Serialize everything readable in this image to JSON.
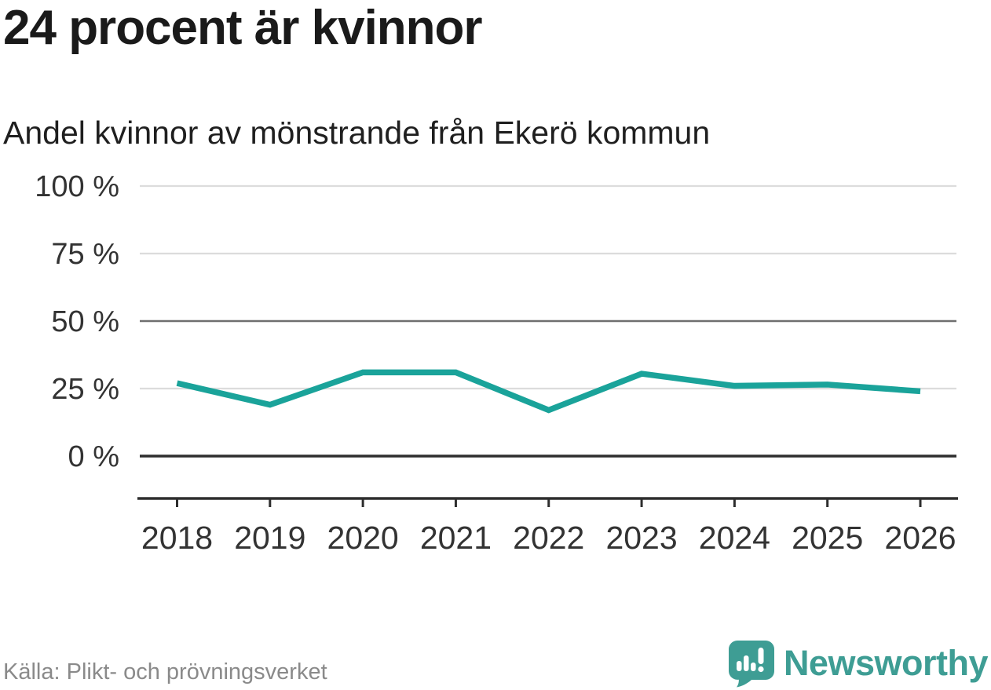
{
  "header": {
    "title": "24 procent är kvinnor",
    "subtitle": "Andel kvinnor av mönstrande från Ekerö kommun"
  },
  "footer": {
    "source": "Källa: Plikt- och prövningsverket",
    "brand_name": "Newsworthy"
  },
  "colors": {
    "line": "#1AA39A",
    "brand": "#3E9D94",
    "grid_light": "#DCDCDC",
    "grid_medium": "#6F6F6F",
    "axis_dark": "#2E2E2E",
    "text_axis": "#333333",
    "text_source": "#8A8A8A"
  },
  "chart_data": {
    "type": "line",
    "title": "Andel kvinnor av mönstrande från Ekerö kommun",
    "categories": [
      "2018",
      "2019",
      "2020",
      "2021",
      "2022",
      "2023",
      "2024",
      "2025",
      "2026"
    ],
    "series": [
      {
        "name": "Andel kvinnor av mönstrande",
        "color": "#1AA39A",
        "values": [
          27,
          19,
          31,
          31,
          17,
          30.5,
          26,
          26.5,
          24
        ]
      }
    ],
    "xlabel": "",
    "ylabel": "",
    "ylim": [
      0,
      100
    ],
    "yticks": [
      {
        "value": 0,
        "label": "0 %",
        "emphasis": "strong"
      },
      {
        "value": 25,
        "label": "25 %",
        "emphasis": "light"
      },
      {
        "value": 50,
        "label": "50 %",
        "emphasis": "medium"
      },
      {
        "value": 75,
        "label": "75 %",
        "emphasis": "light"
      },
      {
        "value": 100,
        "label": "100 %",
        "emphasis": "light"
      }
    ],
    "grid": "horizontal",
    "legend": "none"
  }
}
